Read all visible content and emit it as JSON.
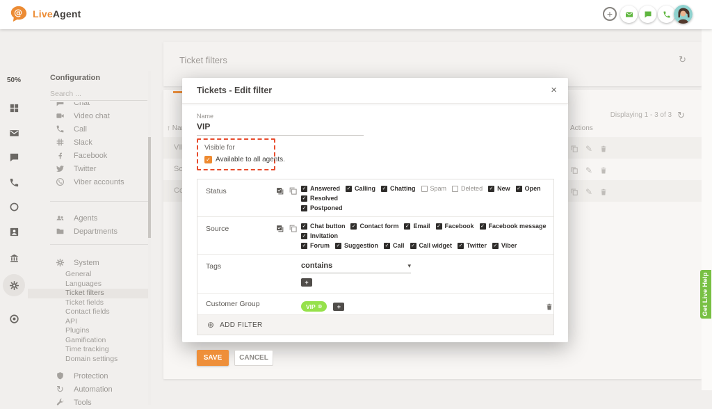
{
  "colors": {
    "accent_orange": "#ee8f3a",
    "brand_orange": "#ec8b33",
    "green": "#5fb63f",
    "pill_green": "#96e14b",
    "dashed_red": "#e84b2c",
    "help_green": "#78c043"
  },
  "brand": {
    "live": "Live",
    "agent": "Agent",
    "at": "@"
  },
  "rail": {
    "zoom_level": "50%",
    "items": [
      {
        "icon": "grid"
      },
      {
        "icon": "mail"
      },
      {
        "icon": "chat"
      },
      {
        "icon": "call"
      },
      {
        "icon": "ring"
      },
      {
        "icon": "badge"
      },
      {
        "icon": "bank"
      },
      {
        "icon": "gear",
        "selected": true
      },
      {
        "icon": "target"
      }
    ]
  },
  "config": {
    "title": "Configuration",
    "search_placeholder": "Search ...",
    "channel_items": [
      {
        "label": "Chat",
        "icon": "chat"
      },
      {
        "label": "Video chat",
        "icon": "video"
      },
      {
        "label": "Call",
        "icon": "call"
      },
      {
        "label": "Slack",
        "icon": "slack"
      },
      {
        "label": "Facebook",
        "icon": "fb"
      },
      {
        "label": "Twitter",
        "icon": "twitter"
      },
      {
        "label": "Viber accounts",
        "icon": "viber"
      }
    ],
    "org_items": [
      {
        "label": "Agents",
        "icon": "people"
      },
      {
        "label": "Departments",
        "icon": "folder"
      }
    ],
    "system": {
      "label": "System",
      "icon": "gear",
      "selected": "Ticket filters",
      "items": [
        "General",
        "Languages",
        "Ticket filters",
        "Ticket fields",
        "Contact fields",
        "API",
        "Plugins",
        "Gamification",
        "Time tracking",
        "Domain settings"
      ]
    },
    "footer_items": [
      {
        "label": "Protection",
        "icon": "shield"
      },
      {
        "label": "Automation",
        "icon": "sync"
      },
      {
        "label": "Tools",
        "icon": "wrench"
      }
    ]
  },
  "page": {
    "title": "Ticket filters",
    "displaying": "Displaying 1 - 3 of 3",
    "table": {
      "name_header": "Name",
      "sort_glyph": "↑",
      "actions_header": "Actions",
      "rows": [
        {
          "name": "VIP"
        },
        {
          "name": "Sona"
        },
        {
          "name": "Copy"
        }
      ]
    }
  },
  "modal": {
    "title": "Tickets - Edit filter",
    "close_glyph": "×",
    "name_label": "Name",
    "name_value": "VIP",
    "visible_for_label": "Visible for",
    "available_label": "Available to all agents.",
    "criteria": [
      {
        "label": "Status",
        "options": [
          {
            "label": "Answered",
            "checked": true,
            "line": 1
          },
          {
            "label": "Calling",
            "checked": true,
            "line": 1
          },
          {
            "label": "Chatting",
            "checked": true,
            "line": 1
          },
          {
            "label": "Spam",
            "checked": false,
            "line": 1
          },
          {
            "label": "Deleted",
            "checked": false,
            "line": 1
          },
          {
            "label": "New",
            "checked": true,
            "line": 1
          },
          {
            "label": "Open",
            "checked": true,
            "line": 1
          },
          {
            "label": "Resolved",
            "checked": true,
            "line": 1
          },
          {
            "label": "Postponed",
            "checked": true,
            "line": 2
          }
        ]
      },
      {
        "label": "Source",
        "options": [
          {
            "label": "Chat button",
            "checked": true,
            "line": 1
          },
          {
            "label": "Contact form",
            "checked": true,
            "line": 1
          },
          {
            "label": "Email",
            "checked": true,
            "line": 1
          },
          {
            "label": "Facebook",
            "checked": true,
            "line": 1
          },
          {
            "label": "Facebook message",
            "checked": true,
            "line": 1
          },
          {
            "label": "Invitation",
            "checked": true,
            "line": 1
          },
          {
            "label": "Forum",
            "checked": true,
            "line": 2
          },
          {
            "label": "Suggestion",
            "checked": true,
            "line": 2
          },
          {
            "label": "Call",
            "checked": true,
            "line": 2
          },
          {
            "label": "Call widget",
            "checked": true,
            "line": 2
          },
          {
            "label": "Twitter",
            "checked": true,
            "line": 2
          },
          {
            "label": "Viber",
            "checked": true,
            "line": 2
          }
        ]
      }
    ],
    "tags": {
      "label": "Tags",
      "operator": "contains",
      "caret": "▾",
      "add_glyph": "+"
    },
    "customer_group": {
      "label": "Customer Group",
      "value": "VIP",
      "remove_glyph": "⊗",
      "add_glyph": "+"
    },
    "add_filter": {
      "plus_glyph": "⊕",
      "label": "ADD FILTER"
    },
    "save_label": "SAVE",
    "cancel_label": "CANCEL"
  },
  "help_tab_label": "Get Live Help",
  "glyphs": {
    "refresh": "↻",
    "pencil": "✎",
    "check": "✓"
  }
}
